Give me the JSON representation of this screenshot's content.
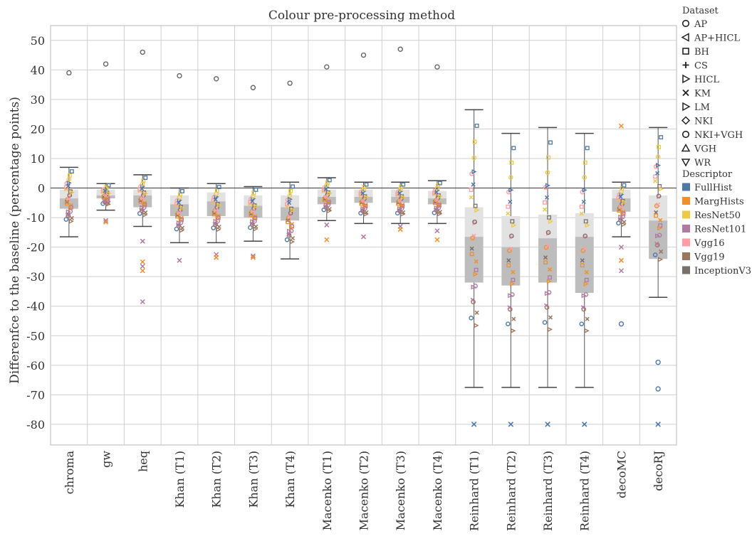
{
  "chart_data": {
    "type": "box",
    "title": "Colour pre-processing method",
    "ylabel": "Differenfce to the baseline (percentage points)",
    "ylim": [
      -87,
      55
    ],
    "yticks": [
      50,
      40,
      30,
      20,
      10,
      0,
      -10,
      -20,
      -30,
      -40,
      -50,
      -60,
      -70,
      -80
    ],
    "reference_line": 0,
    "categories": [
      "chroma",
      "gw",
      "heq",
      "Khan (T1)",
      "Khan (T2)",
      "Khan (T3)",
      "Khan (T4)",
      "Macenko (T1)",
      "Macenko (T2)",
      "Macenko (T3)",
      "Macenko (T4)",
      "Reinhard (T1)",
      "Reinhard (T2)",
      "Reinhard (T3)",
      "Reinhard (T4)",
      "decoMC",
      "decoRJ"
    ],
    "boxes": [
      {
        "lower_whisker": -16.5,
        "q1": -7,
        "median": -3.5,
        "q3": -0.5,
        "upper_whisker": 7,
        "outliers": [
          39
        ]
      },
      {
        "lower_whisker": -7.5,
        "q1": -3.5,
        "median": -2.5,
        "q3": -0.5,
        "upper_whisker": 1.5,
        "outliers": [
          42,
          -11,
          -11.5
        ]
      },
      {
        "lower_whisker": -13,
        "q1": -6.5,
        "median": -2.5,
        "q3": -0.5,
        "upper_whisker": 4.5,
        "outliers": [
          46,
          -18,
          -25,
          -26.5,
          -28,
          -38.5
        ]
      },
      {
        "lower_whisker": -18.5,
        "q1": -9.5,
        "median": -5.5,
        "q3": -2.5,
        "upper_whisker": 0,
        "outliers": [
          38,
          -24.5
        ]
      },
      {
        "lower_whisker": -18.5,
        "q1": -9.5,
        "median": -4.5,
        "q3": -1.5,
        "upper_whisker": 1.5,
        "outliers": [
          37,
          -22.5,
          -23.5
        ]
      },
      {
        "lower_whisker": -18,
        "q1": -10,
        "median": -6,
        "q3": -2.5,
        "upper_whisker": 0.5,
        "outliers": [
          34,
          -23,
          -23.5
        ]
      },
      {
        "lower_whisker": -24,
        "q1": -11,
        "median": -6.5,
        "q3": -2.5,
        "upper_whisker": 2,
        "outliers": [
          35.5
        ]
      },
      {
        "lower_whisker": -11,
        "q1": -5.5,
        "median": -3,
        "q3": -0.5,
        "upper_whisker": 3.5,
        "outliers": [
          41,
          -12.5,
          -17.5
        ]
      },
      {
        "lower_whisker": -12,
        "q1": -5,
        "median": -3,
        "q3": -0.5,
        "upper_whisker": 2,
        "outliers": [
          45,
          -16.5
        ]
      },
      {
        "lower_whisker": -12,
        "q1": -5,
        "median": -3,
        "q3": -0.5,
        "upper_whisker": 2,
        "outliers": [
          47,
          -13,
          -14
        ]
      },
      {
        "lower_whisker": -12,
        "q1": -5.5,
        "median": -3.5,
        "q3": -1,
        "upper_whisker": 2.5,
        "outliers": [
          41,
          -14.5,
          -17.5
        ]
      },
      {
        "lower_whisker": -67.5,
        "q1": -32,
        "median": -16.5,
        "q3": -6.5,
        "upper_whisker": 26.5,
        "outliers": [
          -80
        ]
      },
      {
        "lower_whisker": -67.5,
        "q1": -33,
        "median": -20,
        "q3": -9.5,
        "upper_whisker": 18.5,
        "outliers": [
          -80
        ]
      },
      {
        "lower_whisker": -67.5,
        "q1": -32,
        "median": -17,
        "q3": -9,
        "upper_whisker": 20.5,
        "outliers": [
          -80
        ]
      },
      {
        "lower_whisker": -67.5,
        "q1": -35.5,
        "median": -16.5,
        "q3": -8.5,
        "upper_whisker": 18.5,
        "outliers": [
          -80
        ]
      },
      {
        "lower_whisker": -16.5,
        "q1": -8,
        "median": -3.5,
        "q3": -0.5,
        "upper_whisker": 2,
        "outliers": [
          21,
          -20,
          -24.5,
          -28,
          -46
        ]
      },
      {
        "lower_whisker": -37,
        "q1": -24,
        "median": -11,
        "q3": -2.5,
        "upper_whisker": 20.5,
        "outliers": [
          -59,
          -68,
          -80
        ]
      }
    ],
    "legend_placement": "right",
    "legend_dataset": {
      "title": "Dataset",
      "items": [
        {
          "label": "AP",
          "shape": "circle"
        },
        {
          "label": "AP+HICL",
          "shape": "triangle-left"
        },
        {
          "label": "BH",
          "shape": "square"
        },
        {
          "label": "CS",
          "shape": "plus"
        },
        {
          "label": "HICL",
          "shape": "triangle-right"
        },
        {
          "label": "KM",
          "shape": "cross"
        },
        {
          "label": "LM",
          "shape": "triangle-right"
        },
        {
          "label": "NKI",
          "shape": "diamond"
        },
        {
          "label": "NKI+VGH",
          "shape": "circle"
        },
        {
          "label": "VGH",
          "shape": "triangle-up"
        },
        {
          "label": "WR",
          "shape": "triangle-down"
        }
      ]
    },
    "legend_descriptor": {
      "title": "Descriptor",
      "items": [
        {
          "label": "FullHist",
          "color": "#4e79a7"
        },
        {
          "label": "MargHists",
          "color": "#f28e2b"
        },
        {
          "label": "ResNet50",
          "color": "#edc948"
        },
        {
          "label": "ResNet101",
          "color": "#b07aa1"
        },
        {
          "label": "Vgg16",
          "color": "#ff9da7"
        },
        {
          "label": "Vgg19",
          "color": "#9c755f"
        },
        {
          "label": "InceptionV3",
          "color": "#79706e"
        }
      ]
    },
    "grid": true
  }
}
